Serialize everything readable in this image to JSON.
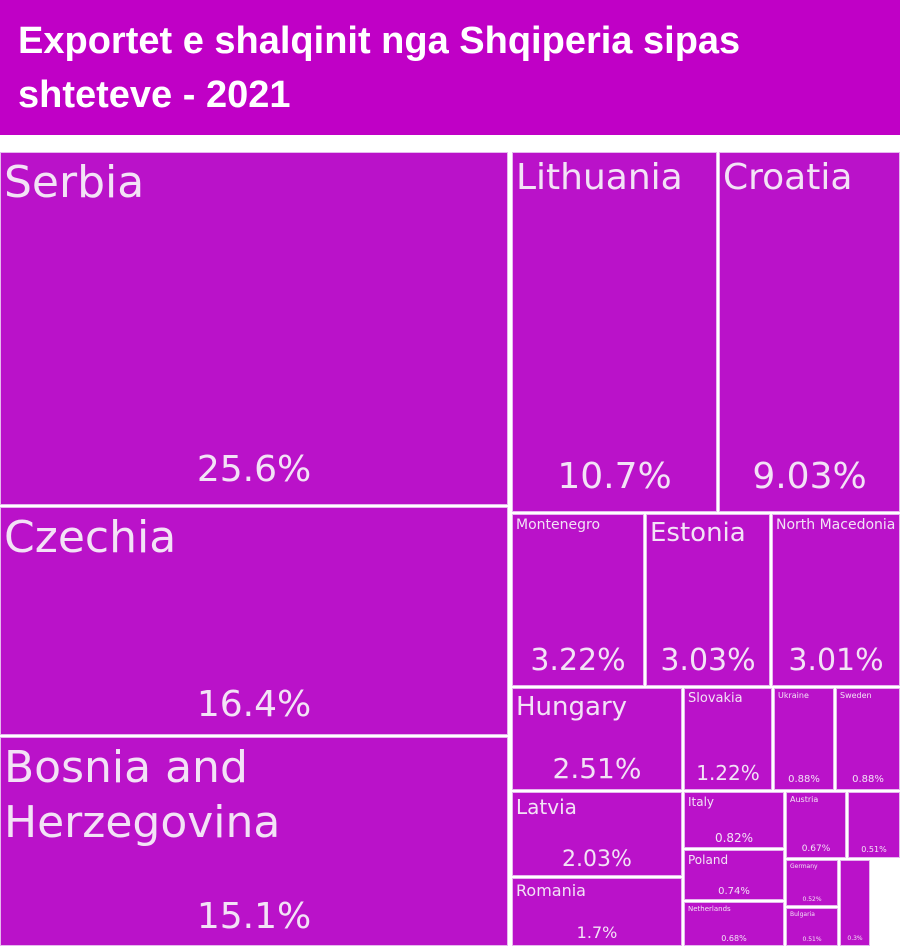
{
  "chart_data": {
    "type": "treemap",
    "title": "Exportet e shalqinit nga Shqiperia sipas shteteve - 2021",
    "color": "#ba12c9",
    "categories": [
      "Serbia",
      "Czechia",
      "Bosnia and Herzegovina",
      "Lithuania",
      "Croatia",
      "Montenegro",
      "Estonia",
      "North Macedonia",
      "Hungary",
      "Slovakia",
      "Ukraine",
      "Sweden",
      "Latvia",
      "Italy",
      "Austria",
      null,
      "Poland",
      "Romania",
      "Netherlands",
      "Germany",
      "Bulgaria",
      null
    ],
    "values": [
      25.6,
      16.4,
      15.1,
      10.7,
      9.03,
      3.22,
      3.03,
      3.01,
      2.51,
      1.22,
      0.88,
      0.88,
      2.03,
      0.82,
      0.67,
      0.51,
      0.74,
      1.7,
      0.68,
      0.52,
      0.51,
      0.3
    ],
    "value_labels": [
      "25.6%",
      "16.4%",
      "15.1%",
      "10.7%",
      "9.03%",
      "3.22%",
      "3.03%",
      "3.01%",
      "2.51%",
      "1.22%",
      "0.88%",
      "0.88%",
      "2.03%",
      "0.82%",
      "0.67%",
      "0.51%",
      "0.74%",
      "1.7%",
      "0.68%",
      "0.52%",
      "0.51%",
      "0.3%"
    ]
  }
}
